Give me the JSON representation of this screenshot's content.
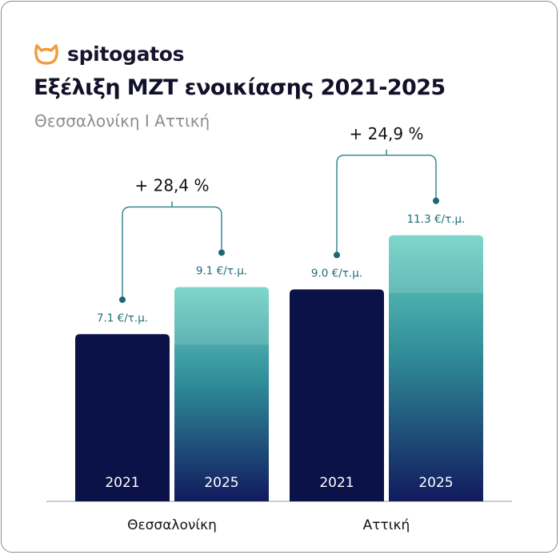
{
  "brand": {
    "name": "spitogatos",
    "accent_color": "#F29A38",
    "icon": "cat-head-icon"
  },
  "header": {
    "title": "Εξέλιξη ΜΖΤ ενοικίασης 2021-2025",
    "subtitle": "Θεσσαλονίκη Ι Αττική"
  },
  "colors": {
    "bar_2021": "#0b1248",
    "bar_2025_top": "#6ad0c3",
    "bar_2025_bottom": "#111a5e",
    "value_label": "#1d6c7a",
    "bracket": "#2b7f8b",
    "change_label": "#111111"
  },
  "chart_data": {
    "type": "bar",
    "categories": [
      "Θεσσαλονίκη",
      "Αττική"
    ],
    "series": [
      {
        "name": "2021",
        "values": [
          7.1,
          9.0
        ]
      },
      {
        "name": "2025",
        "values": [
          9.1,
          11.3
        ]
      }
    ],
    "value_labels": [
      [
        "7.1 €/τ.μ.",
        "9.1 €/τ.μ."
      ],
      [
        "9.0 €/τ.μ.",
        "11.3 €/τ.μ."
      ]
    ],
    "change_labels": [
      "+ 28,4 %",
      "+ 24,9 %"
    ],
    "ylim": [
      0,
      12.5
    ],
    "grid": false,
    "legend": "none"
  }
}
